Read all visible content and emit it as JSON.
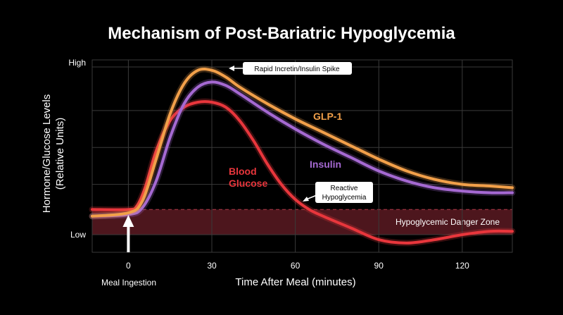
{
  "chart_data": {
    "type": "line",
    "title": "Mechanism of Post-Bariatric Hypoglycemia",
    "xlabel": "Time After Meal (minutes)",
    "ylabel_line1": "Hormone/Glucose Levels",
    "ylabel_line2": "(Relative Units)",
    "xlim": [
      -13,
      138
    ],
    "ylim": [
      0,
      100
    ],
    "x_ticks": [
      0,
      30,
      60,
      90,
      120
    ],
    "y_ticks": [
      {
        "value": 0,
        "label": "Low"
      },
      {
        "value": 100,
        "label": "High"
      }
    ],
    "y_gridlines": [
      0,
      30,
      52,
      74,
      100
    ],
    "grid": true,
    "series": [
      {
        "name": "Blood Glucose",
        "name_line1": "Blood",
        "name_line2": "Glucose",
        "color": "#e8363c",
        "x": [
          -13,
          0,
          3,
          6,
          10,
          15,
          20,
          25,
          30,
          35,
          40,
          45,
          50,
          55,
          60,
          65,
          70,
          80,
          90,
          100,
          110,
          120,
          130,
          138
        ],
        "y": [
          15,
          15,
          17,
          28,
          50,
          68,
          76,
          79,
          79,
          76,
          68,
          56,
          42,
          30,
          21,
          15,
          11,
          4,
          -3,
          -5,
          -3,
          0,
          2,
          2
        ]
      },
      {
        "name": "GLP-1",
        "color": "#f2a04a",
        "x": [
          -13,
          0,
          5,
          10,
          15,
          20,
          25,
          30,
          35,
          40,
          50,
          60,
          70,
          80,
          90,
          100,
          110,
          120,
          130,
          138
        ],
        "y": [
          11,
          13,
          20,
          45,
          72,
          90,
          98,
          98,
          94,
          88,
          78,
          69,
          61,
          53,
          45,
          38,
          33,
          30,
          29,
          28
        ]
      },
      {
        "name": "Insulin",
        "color": "#a569d2",
        "x": [
          -13,
          0,
          5,
          10,
          15,
          20,
          25,
          30,
          35,
          40,
          50,
          60,
          70,
          80,
          90,
          100,
          110,
          120,
          130,
          138
        ],
        "y": [
          11,
          12,
          16,
          32,
          58,
          78,
          88,
          91,
          89,
          84,
          73,
          63,
          54,
          46,
          38,
          32,
          28,
          26,
          25,
          25
        ]
      }
    ],
    "danger_zone": {
      "label": "Hypoglycemic Danger Zone",
      "y_from": 0,
      "y_to": 15,
      "color": "#5a1a22"
    },
    "annotations": {
      "spike": "Rapid Incretin/Insulin Spike",
      "reactive_line1": "Reactive",
      "reactive_line2": "Hypoglycemia",
      "meal": "Meal Ingestion"
    },
    "colors": {
      "background": "#000000",
      "text": "#ffffff",
      "grid": "#3a3a3a"
    }
  }
}
